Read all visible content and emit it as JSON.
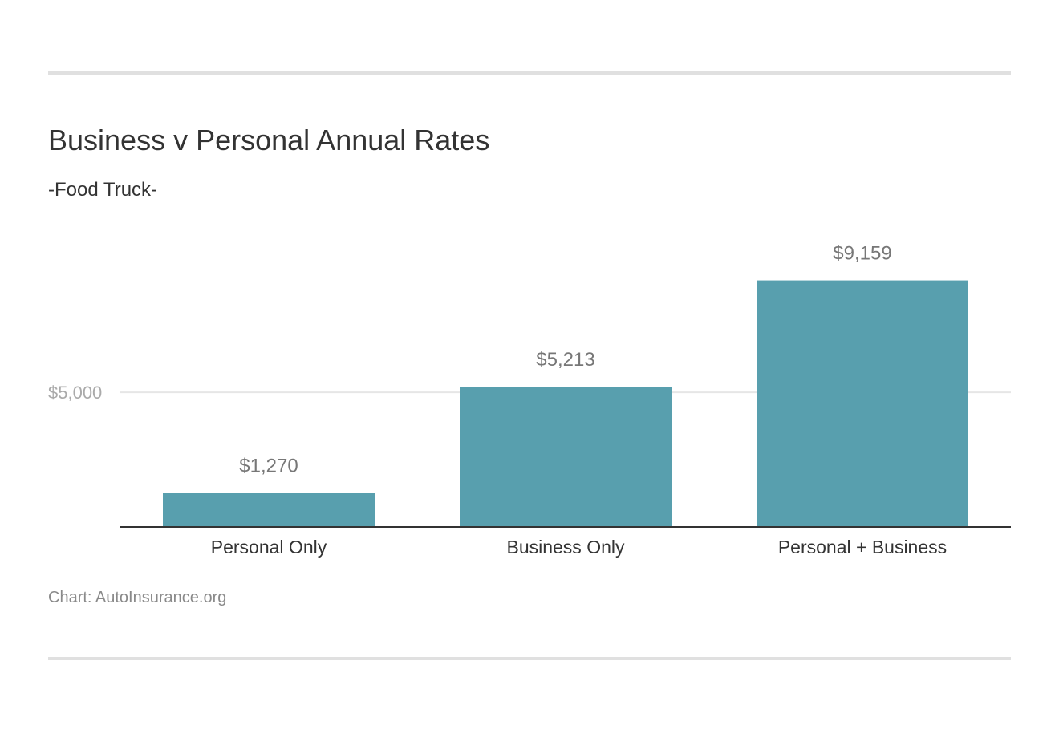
{
  "title": "Business v Personal Annual Rates",
  "subtitle": "-Food Truck-",
  "source": "Chart: AutoInsurance.org",
  "colors": {
    "bar": "#589FAE",
    "grid": "#e6e6e6",
    "axis": "#333333",
    "tick_label": "#aaaaaa",
    "value_label": "#777777",
    "category_label": "#333333"
  },
  "chart_data": {
    "type": "bar",
    "categories": [
      "Personal Only",
      "Business Only",
      "Personal + Business"
    ],
    "values": [
      1270,
      5213,
      9159
    ],
    "value_labels": [
      "$1,270",
      "$5,213",
      "$9,159"
    ],
    "yticks": [
      5000
    ],
    "ytick_labels": [
      "$5,000"
    ],
    "ylim": [
      0,
      10040
    ],
    "grid": true,
    "legend": "none"
  }
}
